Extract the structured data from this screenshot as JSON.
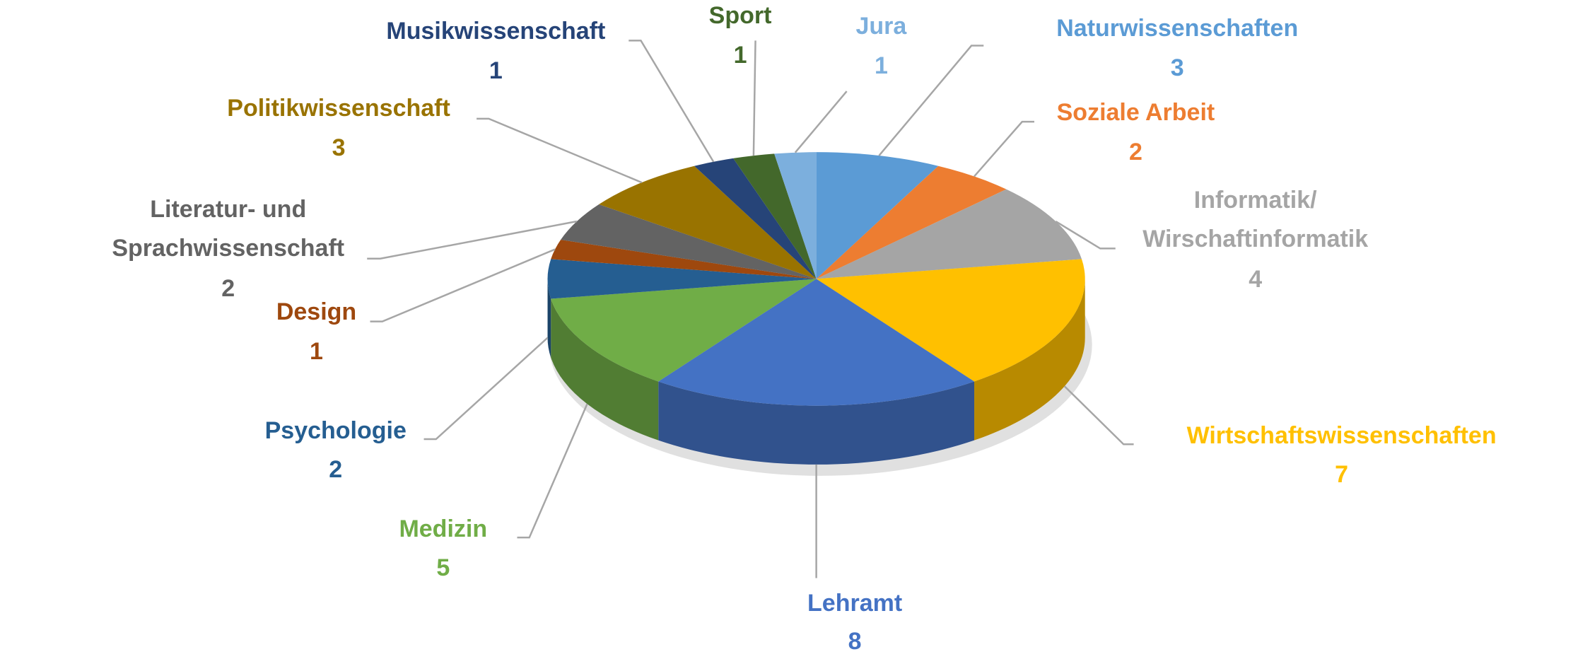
{
  "chart_data": {
    "type": "pie3d",
    "categories": [
      "Naturwissenschaften",
      "Soziale Arbeit",
      "Informatik/\nWirschaftinformatik",
      "Wirtschaftswissenschaften",
      "Lehramt",
      "Medizin",
      "Psychologie",
      "Design",
      "Literatur- und\nSprachwissenschaft",
      "Politikwissenschaft",
      "Musikwissenschaft",
      "Sport",
      "Jura"
    ],
    "values": [
      3,
      2,
      4,
      7,
      8,
      5,
      2,
      1,
      2,
      3,
      1,
      1,
      1
    ],
    "colors": [
      "#5b9bd5",
      "#ed7d31",
      "#a5a5a5",
      "#ffc000",
      "#4472c4",
      "#70ad47",
      "#255e91",
      "#9e480e",
      "#636363",
      "#997300",
      "#264478",
      "#43682b",
      "#7cafdd"
    ]
  }
}
